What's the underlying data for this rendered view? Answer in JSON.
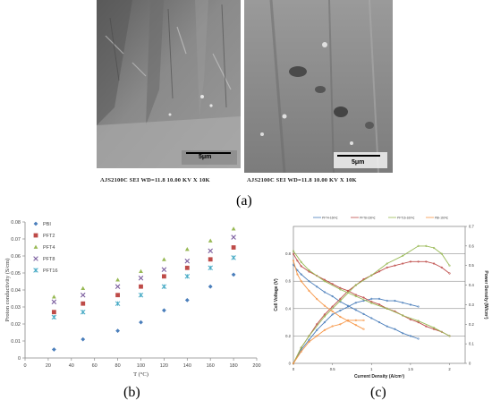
{
  "figure": {
    "panel_a": {
      "label": "(a)",
      "left_caption": "AJS2100C  SEI  WD=11.8  10.00 KV X 10K",
      "right_caption": "AJS2100C  SEI  WD=11.8  10.00 KV X 10K",
      "left_scale": "5μm",
      "right_scale": "5μm"
    },
    "panel_b": {
      "label": "(b)"
    },
    "panel_c": {
      "label": "(c)"
    }
  },
  "colors": {
    "PBI": "#4a7ebb",
    "PFT2": "#be4b48",
    "PFT4": "#98b954",
    "PFT8": "#7d60a0",
    "PFT16": "#46aac5"
  },
  "chart_data": [
    {
      "type": "scatter",
      "xlabel": "T (°C)",
      "ylabel": "Proton conductivity (S/cm)",
      "xlim": [
        0,
        200
      ],
      "ylim": [
        0,
        0.08
      ],
      "xticks": [
        "0",
        "20",
        "40",
        "60",
        "80",
        "100",
        "120",
        "140",
        "160",
        "180",
        "200"
      ],
      "yticks": [
        "0",
        "0.01",
        "0.02",
        "0.03",
        "0.04",
        "0.05",
        "0.06",
        "0.07",
        "0.08"
      ],
      "grid": false,
      "legend": "top-left",
      "series": [
        {
          "name": "PBI",
          "marker": "diamond",
          "x": [
            25,
            50,
            80,
            100,
            120,
            140,
            160,
            180
          ],
          "y": [
            0.005,
            0.011,
            0.016,
            0.021,
            0.028,
            0.034,
            0.042,
            0.049
          ]
        },
        {
          "name": "PFT2",
          "marker": "square",
          "x": [
            25,
            50,
            80,
            100,
            120,
            140,
            160,
            180
          ],
          "y": [
            0.027,
            0.032,
            0.037,
            0.042,
            0.048,
            0.053,
            0.058,
            0.065
          ]
        },
        {
          "name": "PFT4",
          "marker": "triangle",
          "x": [
            25,
            50,
            80,
            100,
            120,
            140,
            160,
            180
          ],
          "y": [
            0.036,
            0.041,
            0.046,
            0.051,
            0.058,
            0.064,
            0.069,
            0.076
          ]
        },
        {
          "name": "PFT8",
          "marker": "x",
          "x": [
            25,
            50,
            80,
            100,
            120,
            140,
            160,
            180
          ],
          "y": [
            0.033,
            0.037,
            0.042,
            0.047,
            0.052,
            0.057,
            0.063,
            0.071
          ]
        },
        {
          "name": "PFT16",
          "marker": "star",
          "x": [
            25,
            50,
            80,
            100,
            120,
            140,
            160,
            180
          ],
          "y": [
            0.024,
            0.027,
            0.032,
            0.037,
            0.042,
            0.048,
            0.053,
            0.059
          ]
        }
      ]
    },
    {
      "type": "line",
      "xlabel": "Current Density (A/cm²)",
      "ylabel": "Cell Voltage (V)",
      "y2label": "Power Density (W/cm²)",
      "xlim": [
        0,
        2.2
      ],
      "ylim": [
        0,
        1.0
      ],
      "y2lim": [
        0,
        0.7
      ],
      "xticks": [
        "0",
        "0.5",
        "1",
        "1.5",
        "2"
      ],
      "yticks": [
        "0",
        "0.2",
        "0.4",
        "0.6",
        "0.8"
      ],
      "y2ticks": [
        "0",
        "0.1",
        "0.2",
        "0.3",
        "0.4",
        "0.5",
        "0.6",
        "0.7"
      ],
      "grid": true,
      "legend": "top",
      "series": [
        {
          "name": "PFT4-160℃",
          "axis": "voltage",
          "color": "#4a7ebb",
          "x": [
            0,
            0.05,
            0.1,
            0.2,
            0.3,
            0.4,
            0.5,
            0.6,
            0.7,
            0.8,
            0.9,
            1.0,
            1.1,
            1.2,
            1.3,
            1.4,
            1.5,
            1.6
          ],
          "y": [
            0.72,
            0.68,
            0.65,
            0.6,
            0.56,
            0.52,
            0.49,
            0.45,
            0.42,
            0.39,
            0.36,
            0.33,
            0.3,
            0.27,
            0.25,
            0.22,
            0.2,
            0.18
          ]
        },
        {
          "name": "PFT4-160℃",
          "axis": "power",
          "color": "#4a7ebb",
          "x": [
            0,
            0.1,
            0.2,
            0.3,
            0.4,
            0.5,
            0.6,
            0.7,
            0.8,
            0.9,
            1.0,
            1.1,
            1.2,
            1.3,
            1.4,
            1.5,
            1.6
          ],
          "y": [
            0,
            0.07,
            0.12,
            0.17,
            0.21,
            0.25,
            0.27,
            0.29,
            0.31,
            0.32,
            0.33,
            0.33,
            0.32,
            0.32,
            0.31,
            0.3,
            0.29
          ]
        },
        {
          "name": "PFT8-160℃",
          "axis": "voltage",
          "color": "#be4b48",
          "x": [
            0,
            0.05,
            0.1,
            0.2,
            0.3,
            0.4,
            0.5,
            0.6,
            0.7,
            0.8,
            0.9,
            1.0,
            1.1,
            1.2,
            1.3,
            1.4,
            1.5,
            1.6,
            1.7,
            1.8,
            1.9,
            2.0
          ],
          "y": [
            0.8,
            0.75,
            0.71,
            0.67,
            0.64,
            0.61,
            0.58,
            0.55,
            0.53,
            0.5,
            0.48,
            0.45,
            0.43,
            0.4,
            0.38,
            0.35,
            0.32,
            0.3,
            0.27,
            0.25,
            0.23,
            0.2
          ]
        },
        {
          "name": "PFT8-160℃",
          "axis": "power",
          "color": "#be4b48",
          "x": [
            0,
            0.1,
            0.2,
            0.3,
            0.4,
            0.5,
            0.6,
            0.7,
            0.8,
            0.9,
            1.0,
            1.1,
            1.2,
            1.3,
            1.4,
            1.5,
            1.6,
            1.7,
            1.8,
            1.9,
            2.0
          ],
          "y": [
            0,
            0.08,
            0.14,
            0.2,
            0.25,
            0.29,
            0.33,
            0.37,
            0.4,
            0.43,
            0.45,
            0.47,
            0.49,
            0.5,
            0.51,
            0.52,
            0.52,
            0.52,
            0.51,
            0.49,
            0.46
          ]
        },
        {
          "name": "PFT16-160℃",
          "axis": "voltage",
          "color": "#98b954",
          "x": [
            0,
            0.1,
            0.2,
            0.4,
            0.6,
            0.8,
            1.0,
            1.2,
            1.4,
            1.6,
            1.8,
            2.0
          ],
          "y": [
            0.82,
            0.74,
            0.68,
            0.6,
            0.54,
            0.49,
            0.44,
            0.4,
            0.35,
            0.31,
            0.26,
            0.2
          ]
        },
        {
          "name": "PFT16-160℃",
          "axis": "power",
          "color": "#98b954",
          "x": [
            0,
            0.1,
            0.2,
            0.4,
            0.6,
            0.8,
            1.0,
            1.2,
            1.4,
            1.6,
            1.7,
            1.8,
            1.9,
            2.0
          ],
          "y": [
            0,
            0.08,
            0.14,
            0.24,
            0.32,
            0.4,
            0.45,
            0.51,
            0.55,
            0.6,
            0.6,
            0.59,
            0.56,
            0.5
          ]
        },
        {
          "name": "PBI-160℃",
          "axis": "voltage",
          "color": "#f79646",
          "x": [
            0,
            0.05,
            0.1,
            0.2,
            0.3,
            0.4,
            0.5,
            0.6,
            0.7,
            0.8,
            0.9
          ],
          "y": [
            0.75,
            0.65,
            0.6,
            0.53,
            0.47,
            0.42,
            0.38,
            0.34,
            0.31,
            0.28,
            0.25
          ]
        },
        {
          "name": "PBI-160℃",
          "axis": "power",
          "color": "#f79646",
          "x": [
            0,
            0.1,
            0.2,
            0.3,
            0.4,
            0.5,
            0.6,
            0.7,
            0.8,
            0.9
          ],
          "y": [
            0,
            0.06,
            0.11,
            0.14,
            0.17,
            0.19,
            0.2,
            0.22,
            0.22,
            0.22
          ]
        }
      ]
    }
  ]
}
